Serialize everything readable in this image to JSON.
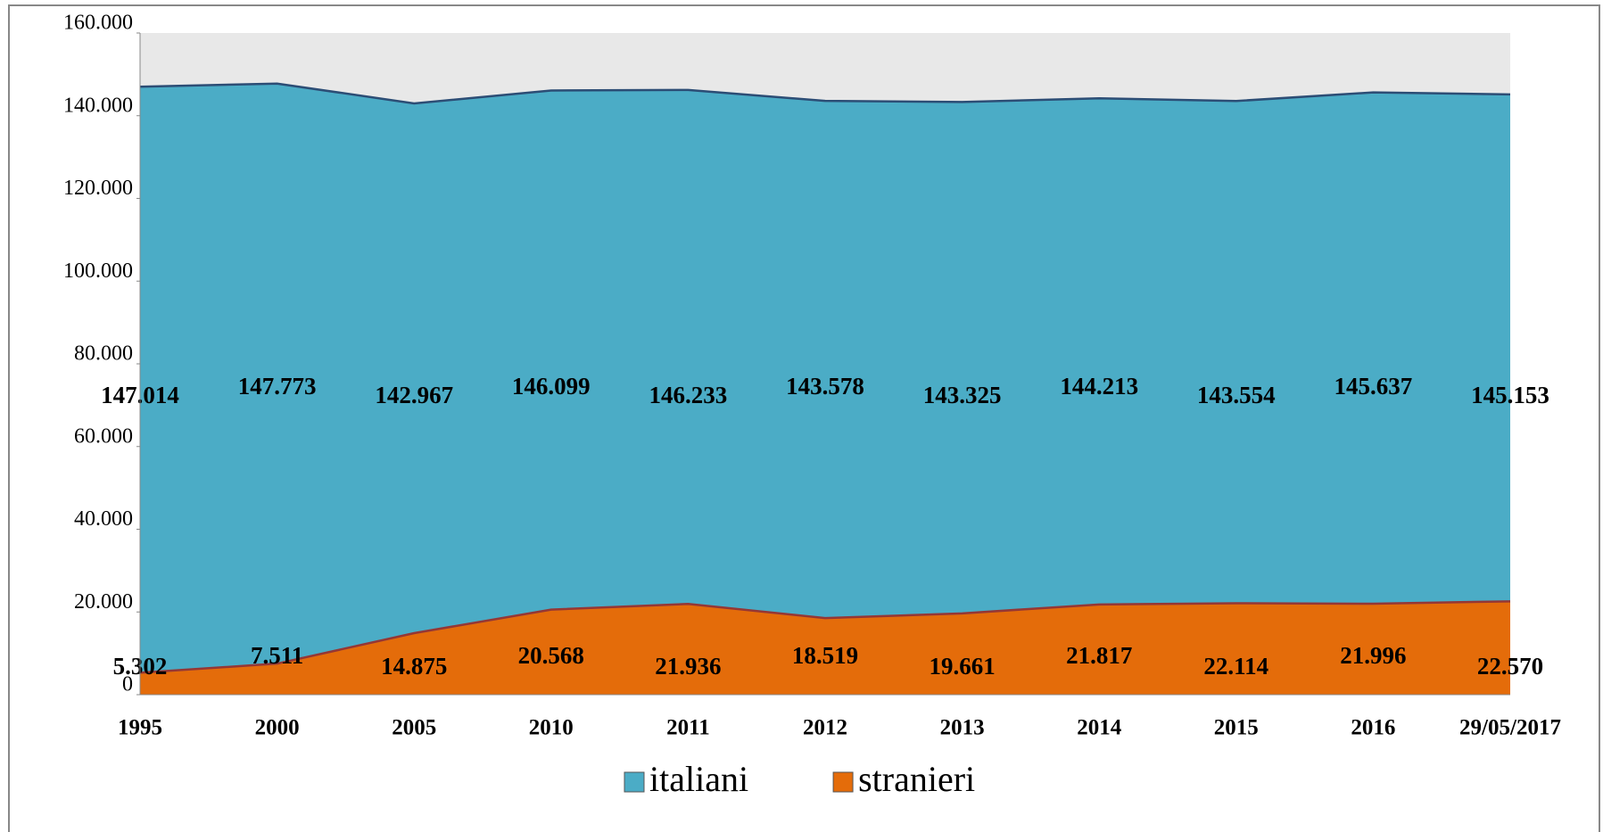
{
  "chart_data": {
    "type": "area",
    "categories": [
      "1995",
      "2000",
      "2005",
      "2010",
      "2011",
      "2012",
      "2013",
      "2014",
      "2015",
      "2016",
      "29/05/2017"
    ],
    "series": [
      {
        "name": "italiani",
        "color": "#4bacc6",
        "line_color": "#2c4d75",
        "values": [
          147014,
          147773,
          142967,
          146099,
          146233,
          143578,
          143325,
          144213,
          143554,
          145637,
          145153
        ],
        "value_labels": [
          "147.014",
          "147.773",
          "142.967",
          "146.099",
          "146.233",
          "143.578",
          "143.325",
          "144.213",
          "143.554",
          "145.637",
          "145.153"
        ]
      },
      {
        "name": "stranieri",
        "color": "#e46c0a",
        "line_color": "#953735",
        "values": [
          5302,
          7511,
          14875,
          20568,
          21936,
          18519,
          19661,
          21817,
          22114,
          21996,
          22570
        ],
        "value_labels": [
          "5.302",
          "7.511",
          "14.875",
          "20.568",
          "21.936",
          "18.519",
          "19.661",
          "21.817",
          "22.114",
          "21.996",
          "22.570"
        ]
      }
    ],
    "ylim": [
      0,
      160000
    ],
    "yticks": [
      0,
      {
        "value": 20000,
        "label": "20.000"
      },
      {
        "value": 40000,
        "label": "40.000"
      },
      {
        "value": 60000,
        "label": "60.000"
      },
      {
        "value": 80000,
        "label": "80.000"
      },
      {
        "value": 100000,
        "label": "100.000"
      },
      {
        "value": 120000,
        "label": "120.000"
      },
      {
        "value": 140000,
        "label": "140.000"
      },
      {
        "value": 160000,
        "label": "160.000"
      }
    ],
    "legend": "bottom",
    "plot_background": "#e8e8e8"
  }
}
